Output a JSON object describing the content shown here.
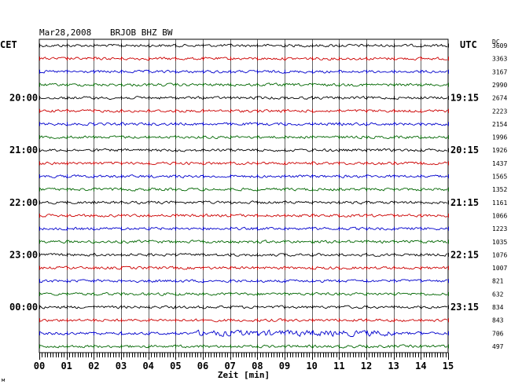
{
  "header": {
    "date": "Mar28,2008",
    "station": "BRJOB BHZ BW",
    "left_tz": "CET",
    "right_tz": "UTC",
    "dc_label": "DC"
  },
  "footer": {
    "xlabel": "Zeit [min]",
    "corner_mark": "м"
  },
  "colors": {
    "trace_cycle": [
      "#000000",
      "#cc0000",
      "#0000cc",
      "#006600"
    ],
    "grid": "#000000"
  },
  "chart_data": {
    "type": "line",
    "title": "Mar28,2008 BRJOB BHZ BW",
    "xlabel": "Zeit [min]",
    "x_ticks": [
      "00",
      "01",
      "02",
      "03",
      "04",
      "05",
      "06",
      "07",
      "08",
      "09",
      "10",
      "11",
      "12",
      "13",
      "14",
      "15"
    ],
    "xlim": [
      0,
      15
    ],
    "traces_per_hour": 4,
    "left_time_labels": [
      {
        "trace_index": 4,
        "text": "20:00"
      },
      {
        "trace_index": 8,
        "text": "21:00"
      },
      {
        "trace_index": 12,
        "text": "22:00"
      },
      {
        "trace_index": 16,
        "text": "23:00"
      },
      {
        "trace_index": 20,
        "text": "00:00"
      }
    ],
    "right_time_labels": [
      {
        "trace_index": 4,
        "text": "19:15"
      },
      {
        "trace_index": 8,
        "text": "20:15"
      },
      {
        "trace_index": 12,
        "text": "21:15"
      },
      {
        "trace_index": 16,
        "text": "22:15"
      },
      {
        "trace_index": 20,
        "text": "23:15"
      }
    ],
    "dc_offsets": [
      3609,
      3363,
      3167,
      2990,
      2674,
      2223,
      2154,
      1996,
      1926,
      1437,
      1565,
      1352,
      1161,
      1066,
      1223,
      1035,
      1076,
      1007,
      821,
      632,
      834,
      843,
      706,
      497
    ],
    "grid": true
  }
}
